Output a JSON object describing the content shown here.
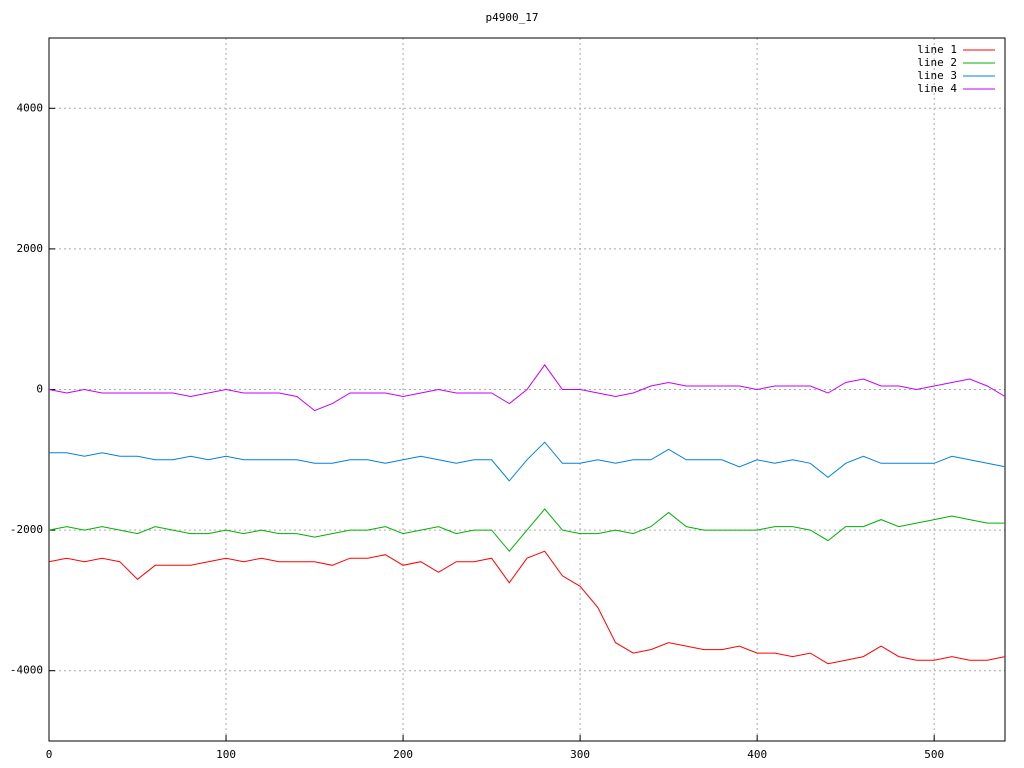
{
  "chart_data": {
    "type": "line",
    "title": "p4900_17",
    "x": [
      0,
      10,
      20,
      30,
      40,
      50,
      60,
      70,
      80,
      90,
      100,
      110,
      120,
      130,
      140,
      150,
      160,
      170,
      180,
      190,
      200,
      210,
      220,
      230,
      240,
      250,
      260,
      270,
      280,
      290,
      300,
      310,
      320,
      330,
      340,
      350,
      360,
      370,
      380,
      390,
      400,
      410,
      420,
      430,
      440,
      450,
      460,
      470,
      480,
      490,
      500,
      510,
      520,
      530,
      540
    ],
    "series": [
      {
        "name": "line 1",
        "color": "#ff0000",
        "values": [
          -2450,
          -2400,
          -2450,
          -2400,
          -2450,
          -2700,
          -2500,
          -2500,
          -2500,
          -2450,
          -2400,
          -2450,
          -2400,
          -2450,
          -2450,
          -2450,
          -2500,
          -2400,
          -2400,
          -2350,
          -2500,
          -2450,
          -2600,
          -2450,
          -2450,
          -2400,
          -2750,
          -2400,
          -2300,
          -2650,
          -2800,
          -3100,
          -3600,
          -3750,
          -3700,
          -3600,
          -3650,
          -3700,
          -3700,
          -3650,
          -3750,
          -3750,
          -3800,
          -3750,
          -3900,
          -3850,
          -3800,
          -3650,
          -3800,
          -3850,
          -3850,
          -3800,
          -3850,
          -3850,
          -3800
        ]
      },
      {
        "name": "line 2",
        "color": "#00b000",
        "values": [
          -2000,
          -1950,
          -2000,
          -1950,
          -2000,
          -2050,
          -1950,
          -2000,
          -2050,
          -2050,
          -2000,
          -2050,
          -2000,
          -2050,
          -2050,
          -2100,
          -2050,
          -2000,
          -2000,
          -1950,
          -2050,
          -2000,
          -1950,
          -2050,
          -2000,
          -2000,
          -2300,
          -2000,
          -1700,
          -2000,
          -2050,
          -2050,
          -2000,
          -2050,
          -1950,
          -1750,
          -1950,
          -2000,
          -2000,
          -2000,
          -2000,
          -1950,
          -1950,
          -2000,
          -2150,
          -1950,
          -1950,
          -1850,
          -1950,
          -1900,
          -1850,
          -1800,
          -1850,
          -1900,
          -1900
        ]
      },
      {
        "name": "line 3",
        "color": "#0080e0",
        "values": [
          -900,
          -900,
          -950,
          -900,
          -950,
          -950,
          -1000,
          -1000,
          -950,
          -1000,
          -950,
          -1000,
          -1000,
          -1000,
          -1000,
          -1050,
          -1050,
          -1000,
          -1000,
          -1050,
          -1000,
          -950,
          -1000,
          -1050,
          -1000,
          -1000,
          -1300,
          -1000,
          -750,
          -1050,
          -1050,
          -1000,
          -1050,
          -1000,
          -1000,
          -850,
          -1000,
          -1000,
          -1000,
          -1100,
          -1000,
          -1050,
          -1000,
          -1050,
          -1250,
          -1050,
          -950,
          -1050,
          -1050,
          -1050,
          -1050,
          -950,
          -1000,
          -1050,
          -1100
        ]
      },
      {
        "name": "line 4",
        "color": "#c000ff",
        "values": [
          0,
          -50,
          0,
          -50,
          -50,
          -50,
          -50,
          -50,
          -100,
          -50,
          0,
          -50,
          -50,
          -50,
          -100,
          -300,
          -200,
          -50,
          -50,
          -50,
          -100,
          -50,
          0,
          -50,
          -50,
          -50,
          -200,
          0,
          350,
          0,
          0,
          -50,
          -100,
          -50,
          50,
          100,
          50,
          50,
          50,
          50,
          0,
          50,
          50,
          50,
          -50,
          100,
          150,
          50,
          50,
          0,
          50,
          100,
          150,
          50,
          -100
        ]
      }
    ],
    "xlim": [
      0,
      540
    ],
    "xticks": [
      0,
      100,
      200,
      300,
      400,
      500
    ],
    "ylim": [
      -5000,
      5000
    ],
    "yticks": [
      -4000,
      -2000,
      0,
      2000,
      4000
    ],
    "grid": true,
    "legend": "top-right"
  }
}
